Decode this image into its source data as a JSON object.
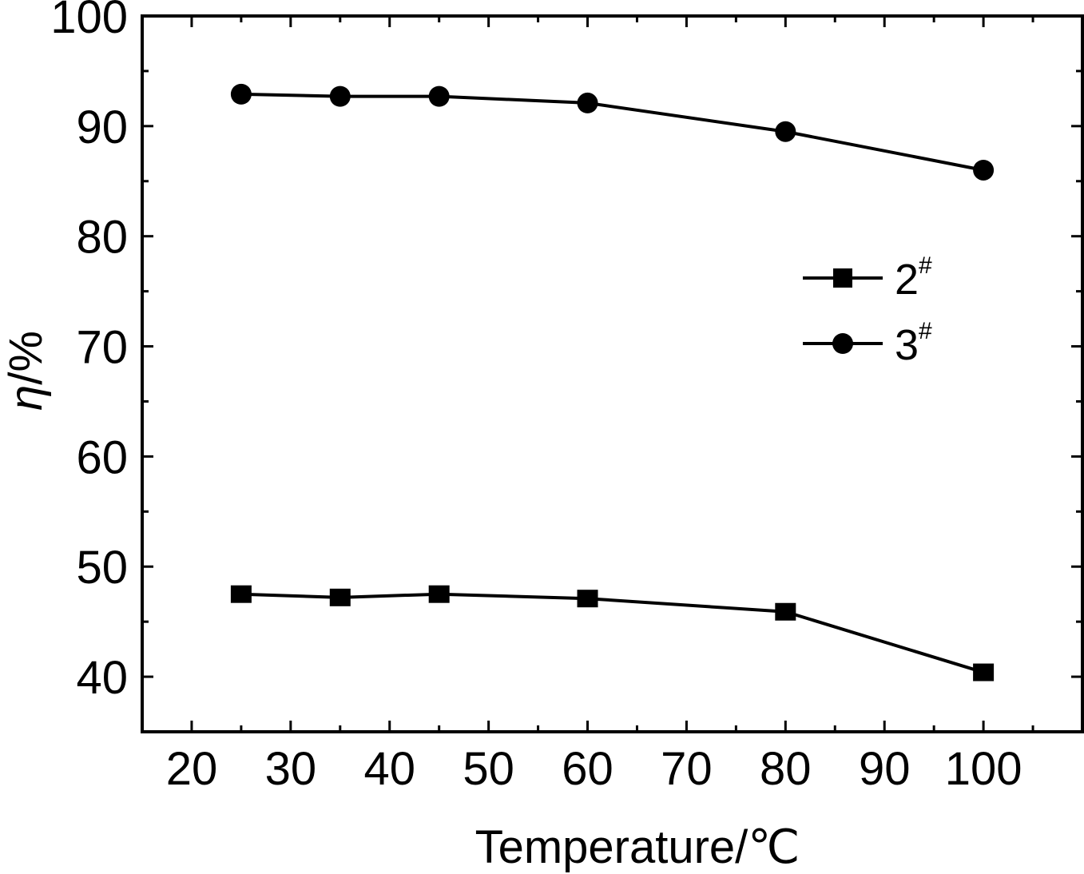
{
  "chart_data": {
    "type": "line",
    "xlabel": "Temperature/℃",
    "ylabel_main": "η",
    "ylabel_unit": "/%",
    "xlim": [
      15,
      110
    ],
    "ylim": [
      35,
      100
    ],
    "xticks": [
      20,
      30,
      40,
      50,
      60,
      70,
      80,
      90,
      100
    ],
    "yticks": [
      40,
      50,
      60,
      70,
      80,
      90,
      100
    ],
    "x": [
      25,
      35,
      45,
      60,
      80,
      100
    ],
    "series": [
      {
        "name": "2",
        "name_sup": "#",
        "marker": "square",
        "color": "#000000",
        "values": [
          47.5,
          47.2,
          47.5,
          47.1,
          45.9,
          40.4
        ]
      },
      {
        "name": "3",
        "name_sup": "#",
        "marker": "circle",
        "color": "#000000",
        "values": [
          92.9,
          92.7,
          92.7,
          92.1,
          89.5,
          86.0
        ]
      }
    ],
    "legend_position": "right-upper",
    "grid": false
  }
}
